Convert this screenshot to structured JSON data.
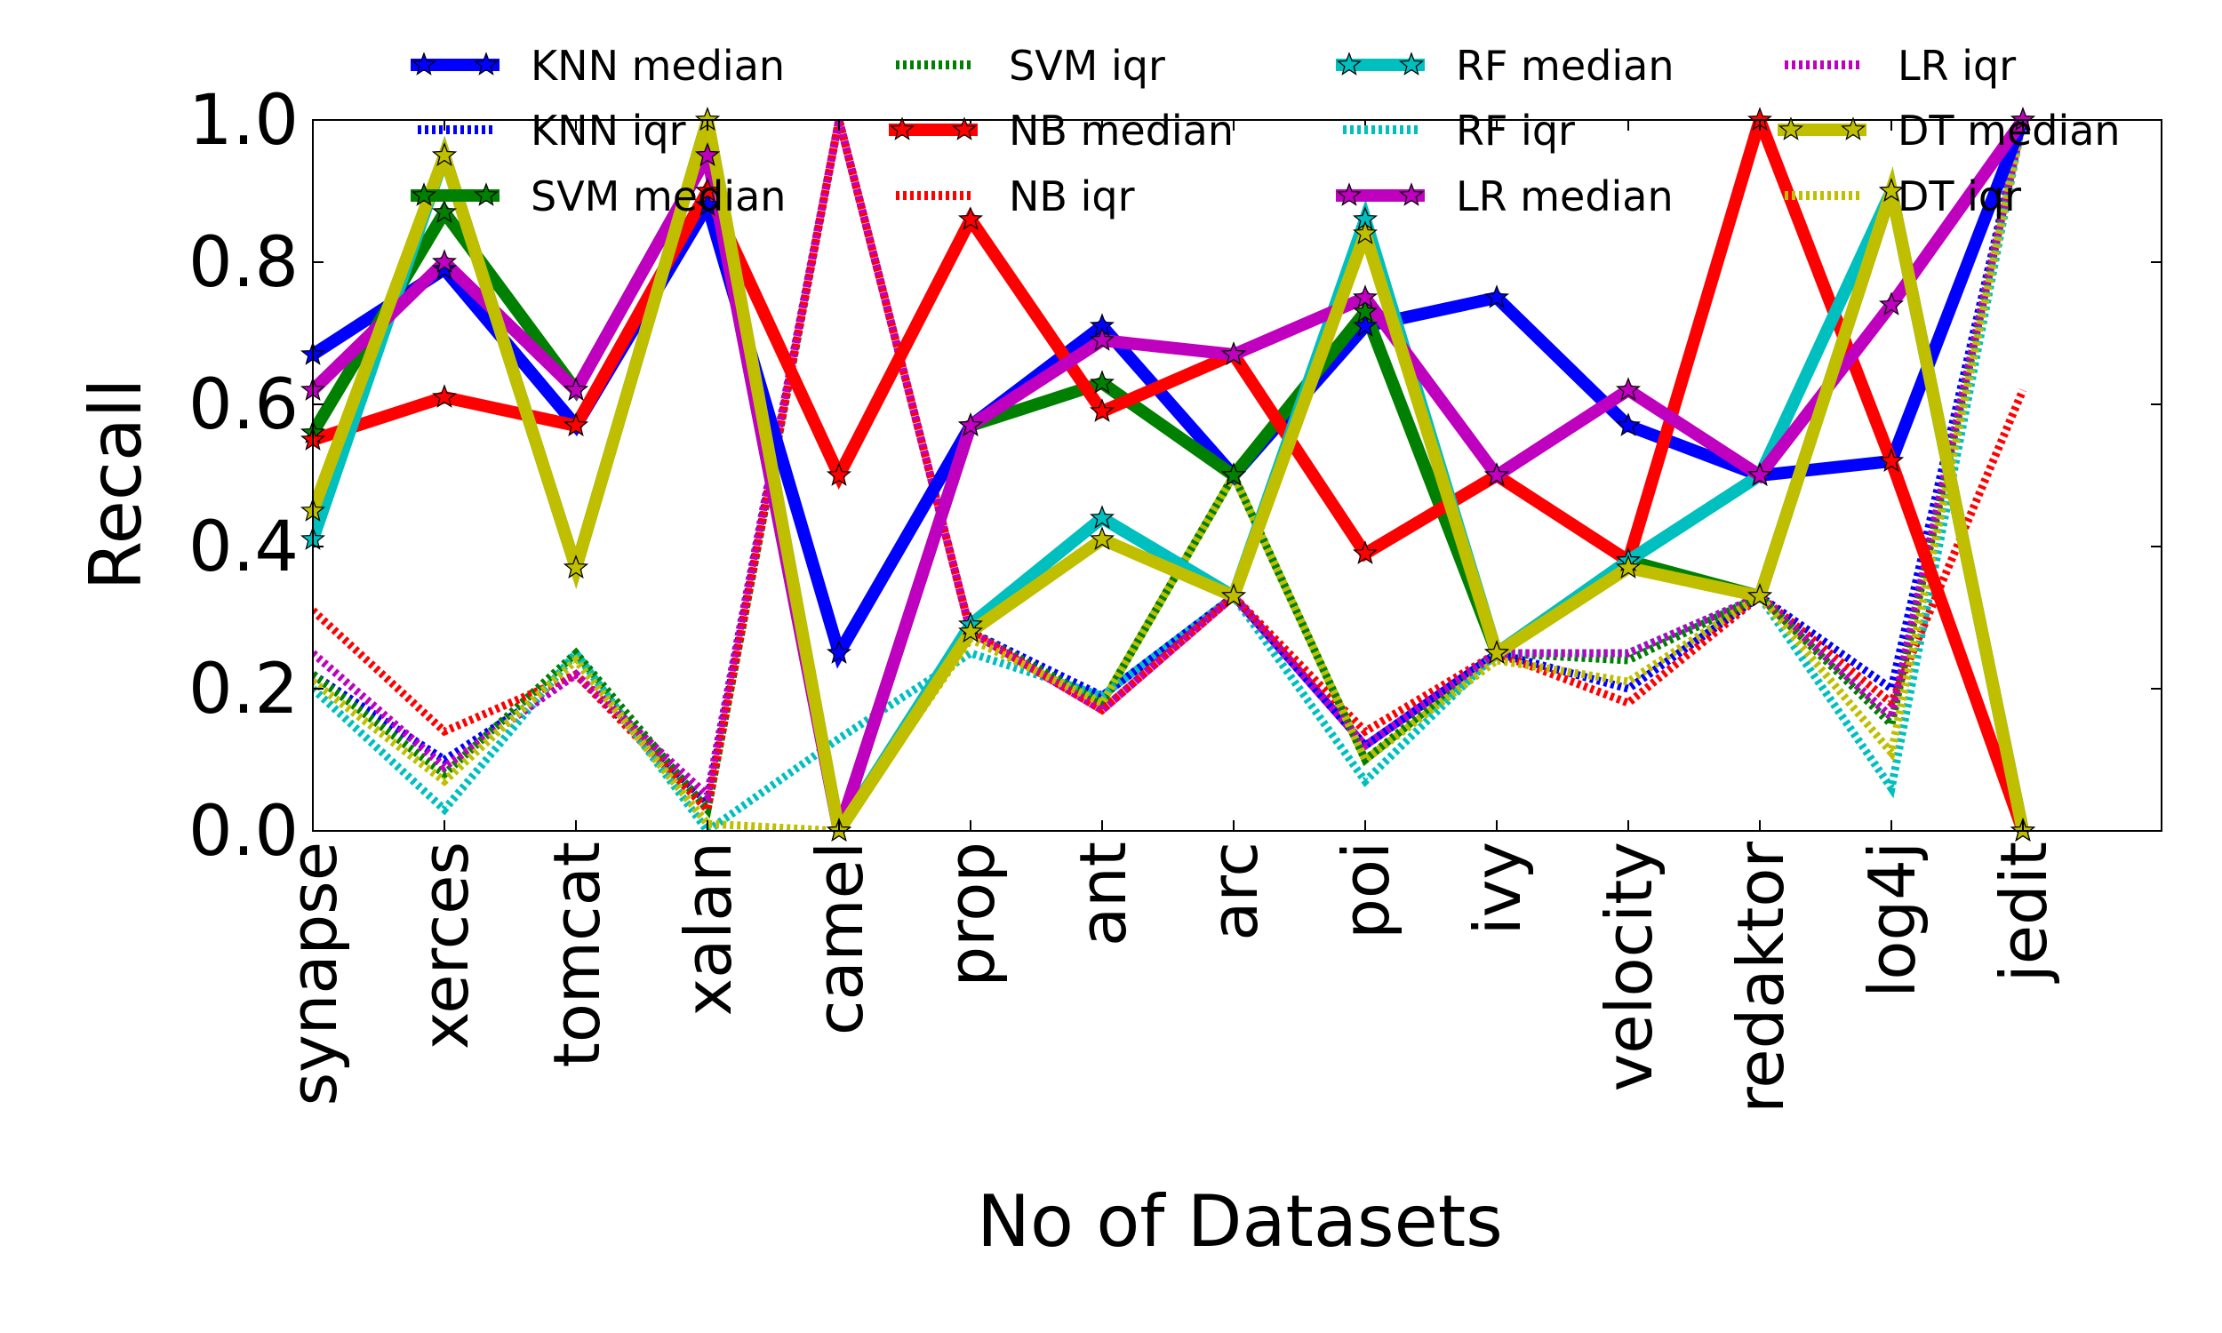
{
  "chart_data": {
    "type": "line",
    "xlabel": "No of Datasets",
    "ylabel": "Recall",
    "ylim": [
      0.0,
      1.0
    ],
    "yticks": [
      "0.0",
      "0.2",
      "0.4",
      "0.6",
      "0.8",
      "1.0"
    ],
    "grid": false,
    "legend_placement": "top",
    "categories": [
      "synapse",
      "xerces",
      "tomcat",
      "xalan",
      "camel",
      "prop",
      "ant",
      "arc",
      "poi",
      "ivy",
      "velocity",
      "redaktor",
      "log4j",
      "jedit"
    ],
    "series": [
      {
        "name": "KNN median",
        "style": "median",
        "color": "#0000ff",
        "values": [
          0.67,
          0.79,
          0.57,
          0.88,
          0.25,
          0.57,
          0.71,
          0.5,
          0.71,
          0.75,
          0.57,
          0.5,
          0.52,
          1.0
        ]
      },
      {
        "name": "KNN iqr",
        "style": "iqr",
        "color": "#0000ff",
        "values": [
          0.22,
          0.1,
          0.22,
          0.04,
          1.0,
          0.28,
          0.19,
          0.33,
          0.12,
          0.25,
          0.2,
          0.33,
          0.2,
          1.0
        ]
      },
      {
        "name": "SVM median",
        "style": "median",
        "color": "#008000",
        "values": [
          0.56,
          0.87,
          0.62,
          0.95,
          0.0,
          0.57,
          0.63,
          0.5,
          0.73,
          0.25,
          0.38,
          0.33,
          0.9,
          0.0
        ]
      },
      {
        "name": "SVM iqr",
        "style": "iqr",
        "color": "#008000",
        "values": [
          0.22,
          0.08,
          0.25,
          0.03,
          1.0,
          0.28,
          0.18,
          0.5,
          0.1,
          0.25,
          0.24,
          0.33,
          0.15,
          1.0
        ]
      },
      {
        "name": "NB median",
        "style": "median",
        "color": "#ff0000",
        "values": [
          0.55,
          0.61,
          0.57,
          0.9,
          0.5,
          0.86,
          0.59,
          0.67,
          0.39,
          0.5,
          0.38,
          1.0,
          0.52,
          0.0
        ]
      },
      {
        "name": "NB iqr",
        "style": "iqr",
        "color": "#ff0000",
        "values": [
          0.31,
          0.14,
          0.22,
          0.03,
          1.0,
          0.28,
          0.17,
          0.33,
          0.14,
          0.25,
          0.18,
          0.33,
          0.18,
          0.62
        ]
      },
      {
        "name": "RF median",
        "style": "median",
        "color": "#00bfbf",
        "values": [
          0.41,
          0.95,
          0.37,
          1.0,
          0.0,
          0.29,
          0.44,
          0.33,
          0.86,
          0.25,
          0.38,
          0.5,
          0.9,
          0.0
        ]
      },
      {
        "name": "RF iqr",
        "style": "iqr",
        "color": "#00bfbf",
        "values": [
          0.2,
          0.03,
          0.25,
          0.0,
          0.13,
          0.25,
          0.19,
          0.33,
          0.07,
          0.25,
          0.25,
          0.33,
          0.06,
          1.0
        ]
      },
      {
        "name": "LR median",
        "style": "median",
        "color": "#bf00bf",
        "values": [
          0.62,
          0.8,
          0.62,
          0.95,
          0.0,
          0.57,
          0.69,
          0.67,
          0.75,
          0.5,
          0.62,
          0.5,
          0.74,
          1.0
        ]
      },
      {
        "name": "LR iqr",
        "style": "iqr",
        "color": "#bf00bf",
        "values": [
          0.25,
          0.09,
          0.22,
          0.05,
          1.0,
          0.28,
          0.17,
          0.33,
          0.12,
          0.25,
          0.25,
          0.33,
          0.16,
          1.0
        ]
      },
      {
        "name": "DT median",
        "style": "median",
        "color": "#bfbf00",
        "values": [
          0.45,
          0.95,
          0.37,
          1.0,
          0.0,
          0.28,
          0.41,
          0.33,
          0.84,
          0.25,
          0.37,
          0.33,
          0.9,
          0.0
        ]
      },
      {
        "name": "DT iqr",
        "style": "iqr",
        "color": "#bfbf00",
        "values": [
          0.21,
          0.07,
          0.24,
          0.01,
          0.0,
          0.27,
          0.18,
          0.5,
          0.1,
          0.24,
          0.21,
          0.33,
          0.11,
          1.0
        ]
      }
    ]
  }
}
